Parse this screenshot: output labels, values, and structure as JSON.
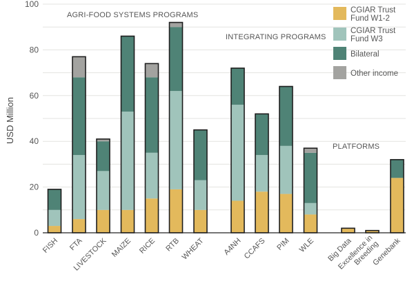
{
  "chart_data": {
    "type": "bar",
    "stacked": true,
    "title": "",
    "xlabel": "",
    "ylabel": "USD Million",
    "ylim": [
      0,
      100
    ],
    "yticks": [
      0,
      20,
      40,
      60,
      80,
      100
    ],
    "grid": true,
    "grid_step": 10,
    "legend_position": "top-right",
    "categories": [
      "FISH",
      "FTA",
      "LIVESTOCK",
      "MAIZE",
      "RICE",
      "RTB",
      "WHEAT",
      "A4NH",
      "CCAFS",
      "PIM",
      "WLE",
      "Big Data",
      "Excellence in Breeding",
      "Genebank"
    ],
    "category_lines": [
      [
        "FISH"
      ],
      [
        "FTA"
      ],
      [
        "LIVESTOCK"
      ],
      [
        "MAIZE"
      ],
      [
        "RICE"
      ],
      [
        "RTB"
      ],
      [
        "WHEAT"
      ],
      [
        "A4NH"
      ],
      [
        "CCAFS"
      ],
      [
        "PIM"
      ],
      [
        "WLE"
      ],
      [
        "Big Data"
      ],
      [
        "Excellence in",
        "Breeding"
      ],
      [
        "Genebank"
      ]
    ],
    "groups": [
      {
        "label": "AGRI-FOOD SYSTEMS PROGRAMS",
        "categories": [
          "FISH",
          "FTA",
          "LIVESTOCK",
          "MAIZE",
          "RICE",
          "RTB",
          "WHEAT"
        ]
      },
      {
        "label": "INTEGRATING PROGRAMS",
        "categories": [
          "A4NH",
          "CCAFS",
          "PIM",
          "WLE"
        ]
      },
      {
        "label": "PLATFORMS",
        "categories": [
          "Big Data",
          "Excellence in Breeding",
          "Genebank"
        ]
      }
    ],
    "series": [
      {
        "name": "CGIAR Trust Fund W1-2",
        "legend_lines": [
          "CGIAR Trust",
          "Fund W1-2"
        ],
        "color": "#e3b95c",
        "values": [
          3,
          6,
          10,
          10,
          15,
          19,
          10,
          14,
          18,
          17,
          8,
          2,
          1,
          24
        ]
      },
      {
        "name": "CGIAR Trust Fund W3",
        "legend_lines": [
          "CGIAR Trust",
          "Fund W3"
        ],
        "color": "#a0c4bb",
        "values": [
          7,
          28,
          17,
          43,
          20,
          43,
          13,
          42,
          16,
          21,
          5,
          0,
          0,
          0
        ]
      },
      {
        "name": "Bilateral",
        "legend_lines": [
          "Bilateral"
        ],
        "color": "#4f8376",
        "values": [
          9,
          34,
          13,
          33,
          33,
          28,
          22,
          16,
          18,
          26,
          22,
          0,
          0,
          8
        ]
      },
      {
        "name": "Other income",
        "legend_lines": [
          "Other income"
        ],
        "color": "#a3a3a0",
        "values": [
          0,
          9,
          1,
          0,
          6,
          2,
          0,
          0,
          0,
          0,
          2,
          0,
          0,
          0
        ]
      }
    ]
  }
}
